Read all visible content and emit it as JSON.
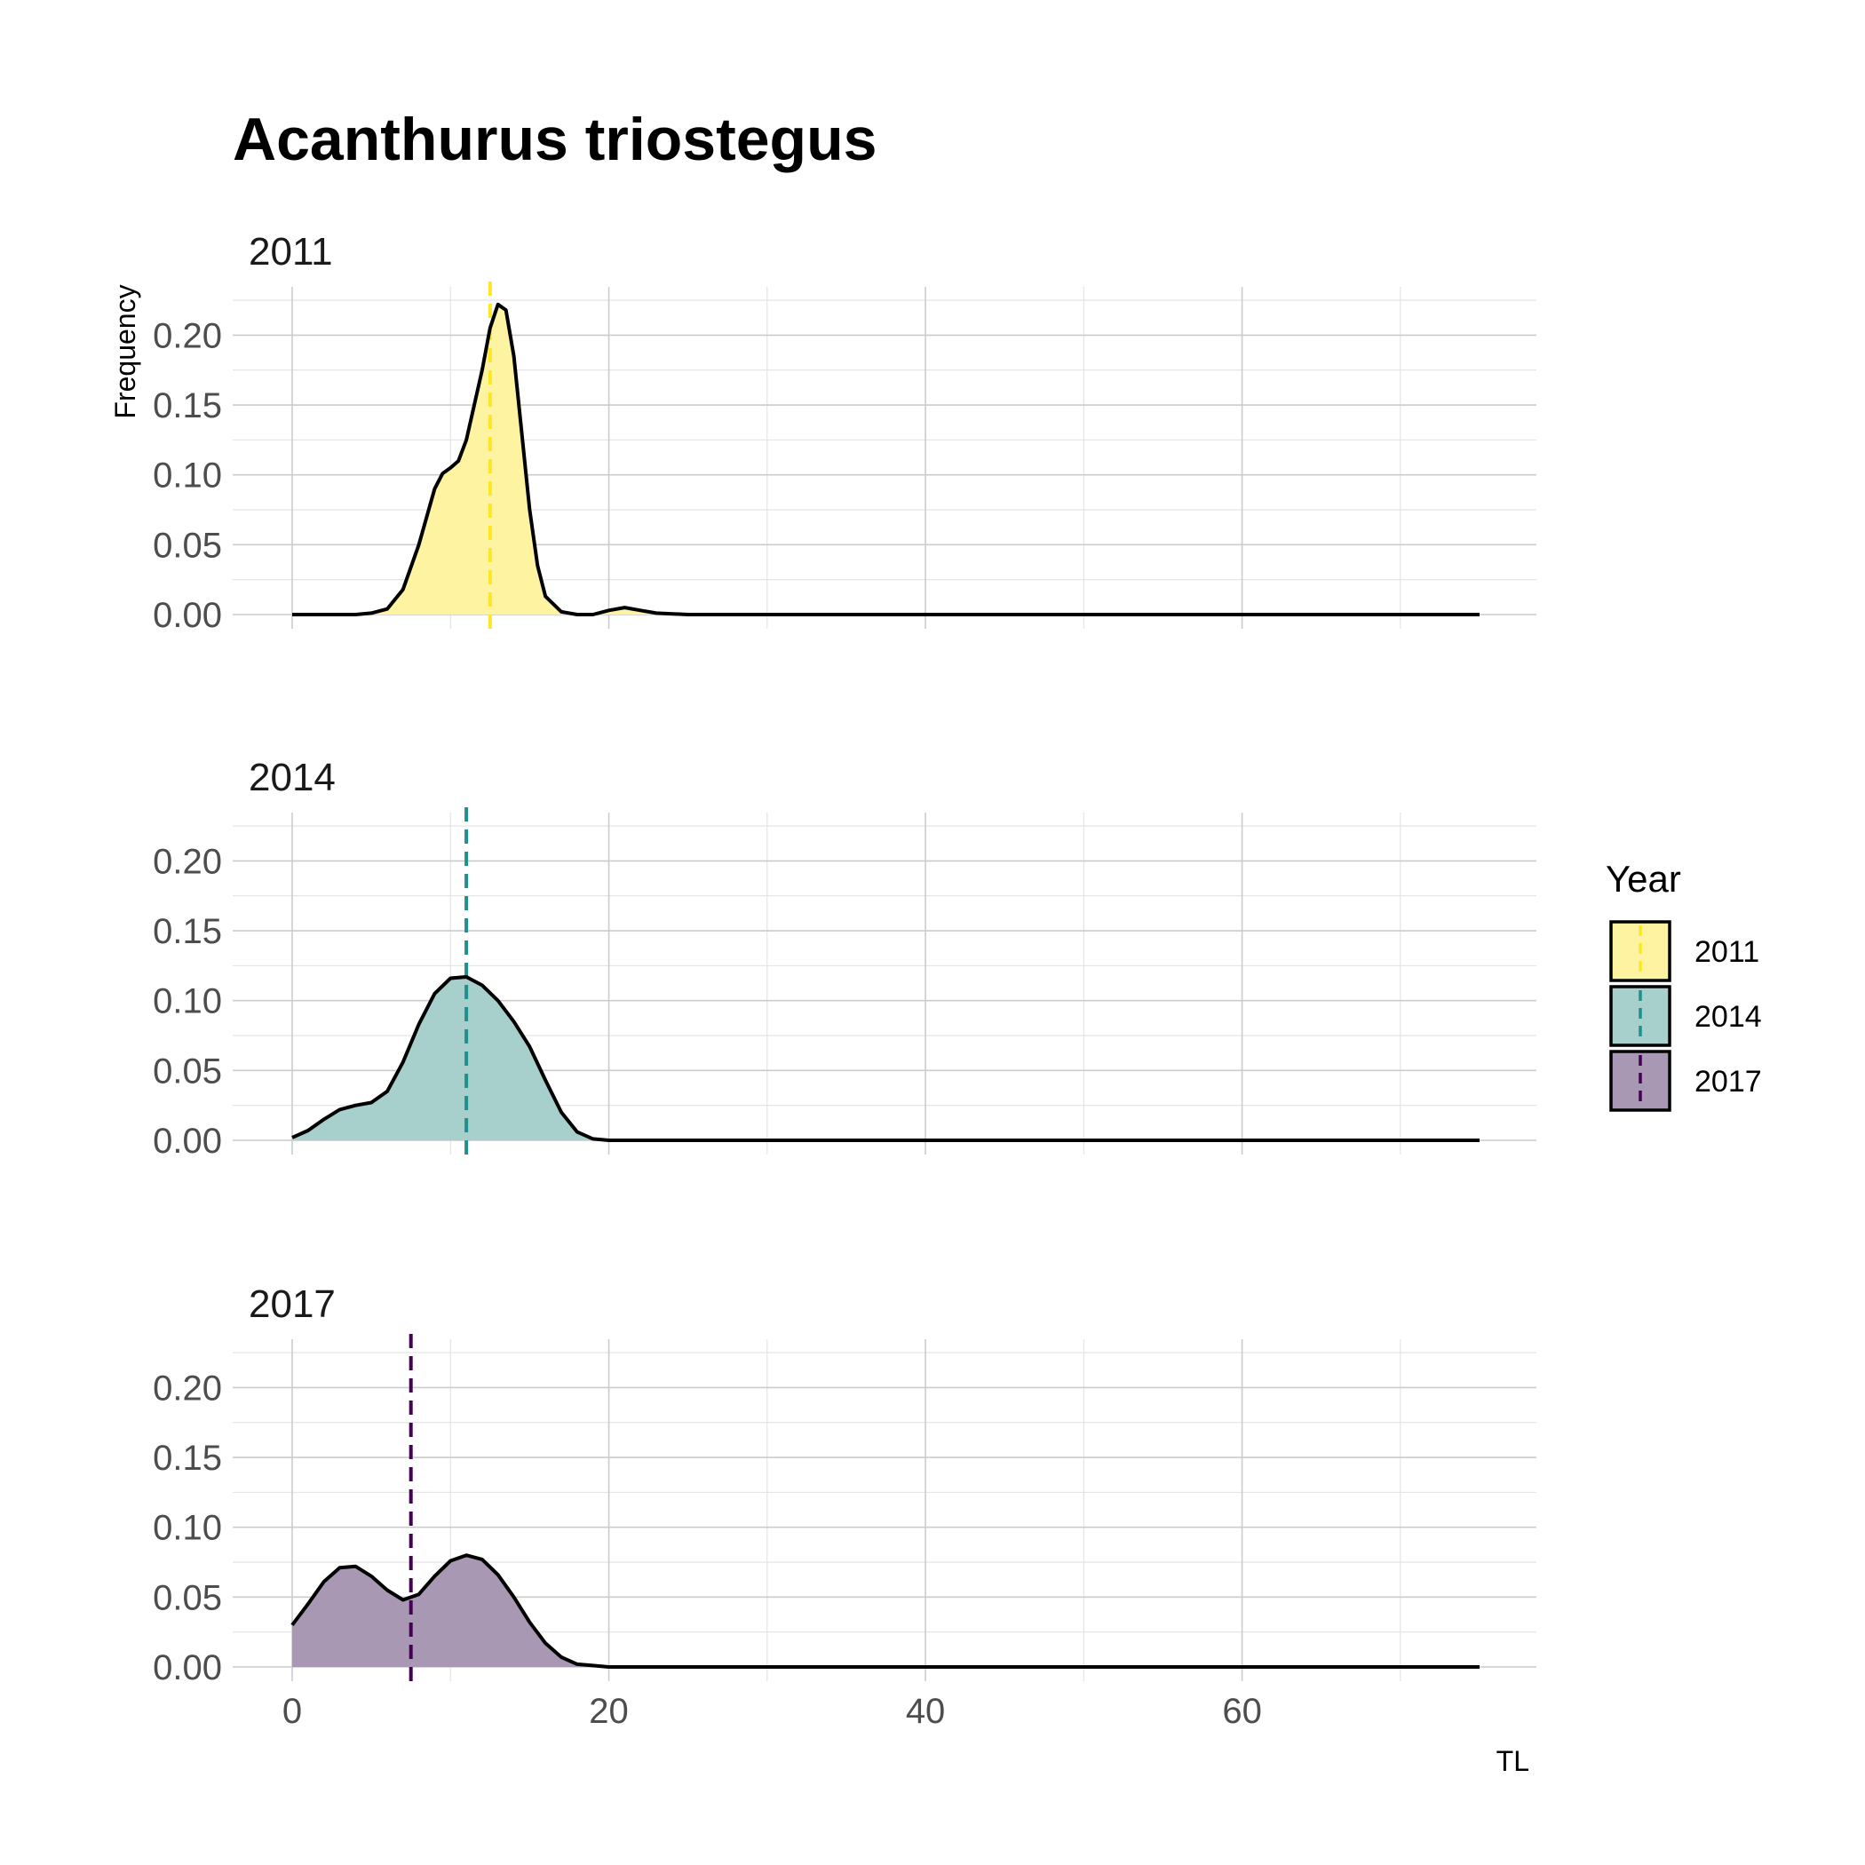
{
  "chart_data": {
    "type": "area",
    "subtype": "density, faceted by year",
    "title": "Acanthurus triostegus",
    "xlabel": "TL",
    "ylabel": "Frequency",
    "xlim": [
      0,
      75
    ],
    "ylim": [
      0,
      0.225
    ],
    "x_ticks": [
      0,
      20,
      40,
      60
    ],
    "y_ticks": [
      0.0,
      0.05,
      0.1,
      0.15,
      0.2
    ],
    "x_tick_labels": [
      "0",
      "20",
      "40",
      "60"
    ],
    "y_tick_labels": [
      "0.00",
      "0.05",
      "0.10",
      "0.15",
      "0.20"
    ],
    "grid": true,
    "legend": {
      "title": "Year",
      "position": "right"
    },
    "panels": [
      {
        "name": "2011",
        "color": "#FDE725",
        "fill": "#FDF3A0",
        "mean_line": 12.5,
        "x": [
          0,
          4,
          5,
          6,
          7,
          8,
          8.5,
          9,
          9.5,
          10,
          10.5,
          11,
          11.5,
          12,
          12.5,
          13,
          13.5,
          14,
          14.5,
          15,
          15.5,
          16,
          17,
          18,
          19,
          20,
          21,
          22,
          23,
          25,
          75
        ],
        "y": [
          0,
          0,
          0.001,
          0.004,
          0.018,
          0.05,
          0.07,
          0.09,
          0.101,
          0.105,
          0.11,
          0.125,
          0.15,
          0.175,
          0.205,
          0.222,
          0.218,
          0.185,
          0.13,
          0.075,
          0.035,
          0.013,
          0.002,
          0.0,
          0.0,
          0.003,
          0.005,
          0.003,
          0.001,
          0,
          0
        ]
      },
      {
        "name": "2014",
        "color": "#21908C",
        "fill": "#A7CFCC",
        "mean_line": 11,
        "x": [
          0,
          1,
          2,
          3,
          4,
          5,
          6,
          7,
          8,
          9,
          10,
          11,
          12,
          13,
          14,
          15,
          16,
          17,
          18,
          19,
          20,
          22,
          75
        ],
        "y": [
          0.002,
          0.007,
          0.015,
          0.022,
          0.025,
          0.027,
          0.035,
          0.056,
          0.083,
          0.105,
          0.116,
          0.117,
          0.111,
          0.1,
          0.085,
          0.067,
          0.043,
          0.02,
          0.006,
          0.001,
          0,
          0,
          0
        ]
      },
      {
        "name": "2017",
        "color": "#440154",
        "fill": "#A898B4",
        "mean_line": 7.5,
        "x": [
          0,
          1,
          2,
          3,
          4,
          5,
          6,
          7,
          8,
          9,
          10,
          11,
          12,
          13,
          14,
          15,
          16,
          17,
          18,
          19,
          20,
          22,
          75
        ],
        "y": [
          0.03,
          0.045,
          0.061,
          0.071,
          0.072,
          0.065,
          0.055,
          0.048,
          0.052,
          0.065,
          0.076,
          0.08,
          0.077,
          0.066,
          0.05,
          0.032,
          0.017,
          0.007,
          0.002,
          0.001,
          0,
          0,
          0
        ]
      }
    ]
  }
}
